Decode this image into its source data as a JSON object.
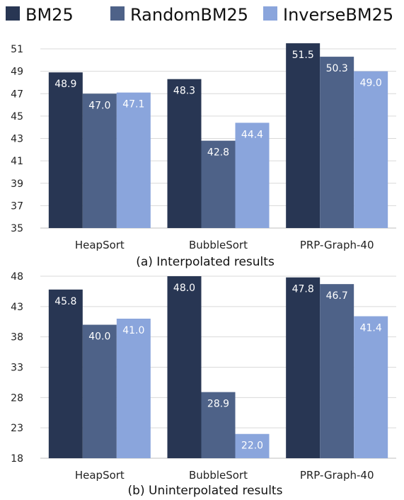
{
  "legend": [
    {
      "name": "BM25",
      "color": "#283653"
    },
    {
      "name": "RandomBM25",
      "color": "#4e6288"
    },
    {
      "name": "InverseBM25",
      "color": "#8aa5dc"
    }
  ],
  "chart_data": [
    {
      "type": "bar",
      "caption": "(a) Interpolated results",
      "categories": [
        "HeapSort",
        "BubbleSort",
        "PRP-Graph-40"
      ],
      "series": [
        {
          "name": "BM25",
          "values": [
            48.9,
            48.3,
            51.5
          ]
        },
        {
          "name": "RandomBM25",
          "values": [
            47.0,
            42.8,
            50.3
          ]
        },
        {
          "name": "InverseBM25",
          "values": [
            47.1,
            44.4,
            49.0
          ]
        }
      ],
      "yticks": [
        "35",
        "37",
        "39",
        "41",
        "43",
        "45",
        "47",
        "49",
        "51"
      ],
      "ylim": [
        35,
        51
      ],
      "value_labels": [
        [
          "48.9",
          "47.0",
          "47.1"
        ],
        [
          "48.3",
          "42.8",
          "44.4"
        ],
        [
          "51.5",
          "50.3",
          "49.0"
        ]
      ],
      "grid": true
    },
    {
      "type": "bar",
      "caption": "(b) Uninterpolated results",
      "categories": [
        "HeapSort",
        "BubbleSort",
        "PRP-Graph-40"
      ],
      "series": [
        {
          "name": "BM25",
          "values": [
            45.8,
            48.0,
            47.8
          ]
        },
        {
          "name": "RandomBM25",
          "values": [
            40.0,
            28.9,
            46.7
          ]
        },
        {
          "name": "InverseBM25",
          "values": [
            41.0,
            22.0,
            41.4
          ]
        }
      ],
      "yticks": [
        "18",
        "23",
        "28",
        "33",
        "38",
        "43",
        "48"
      ],
      "ylim": [
        18,
        48
      ],
      "value_labels": [
        [
          "45.8",
          "40.0",
          "41.0"
        ],
        [
          "48.0",
          "28.9",
          "22.0"
        ],
        [
          "47.8",
          "46.7",
          "41.4"
        ]
      ],
      "grid": true
    }
  ]
}
